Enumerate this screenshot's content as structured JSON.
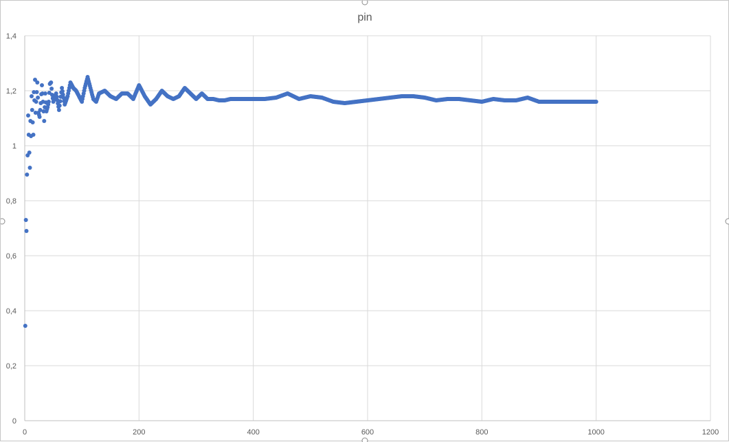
{
  "chart_data": {
    "type": "scatter",
    "title": "pin",
    "xlabel": "",
    "ylabel": "",
    "xlim": [
      0,
      1200
    ],
    "ylim": [
      0,
      1.4
    ],
    "x_ticks": [
      0,
      200,
      400,
      600,
      800,
      1000,
      1200
    ],
    "y_ticks": [
      0,
      0.2,
      0.4,
      0.6,
      0.8,
      1,
      1.2,
      1.4
    ],
    "x_tick_labels": [
      "0",
      "200",
      "400",
      "600",
      "800",
      "1000",
      "1200"
    ],
    "y_tick_labels": [
      "0",
      "0,2",
      "0,4",
      "0,6",
      "0,8",
      "1",
      "1,2",
      "1,4"
    ],
    "grid": true,
    "legend": "none",
    "marker_color": "#4472c4",
    "series": [
      {
        "x": [
          1,
          2,
          3,
          4,
          5,
          6,
          7,
          8,
          9,
          10,
          11,
          12,
          13,
          14,
          15,
          16,
          17,
          18,
          19,
          20,
          22,
          24,
          26,
          28,
          30,
          32,
          34,
          36,
          38,
          40,
          42,
          44,
          46,
          48,
          50,
          55,
          60,
          65,
          70,
          75,
          80,
          85,
          90,
          95,
          100,
          105,
          110,
          115,
          120,
          125,
          130,
          140,
          150,
          160,
          170,
          180,
          190,
          200,
          210,
          220,
          230,
          240,
          250,
          260,
          270,
          280,
          290,
          300,
          310,
          320,
          330,
          340,
          350,
          360,
          380,
          400,
          420,
          440,
          460,
          470,
          480,
          500,
          520,
          540,
          560,
          580,
          600,
          620,
          640,
          660,
          680,
          700,
          720,
          740,
          760,
          780,
          800,
          820,
          840,
          860,
          880,
          900,
          920,
          940,
          960,
          980,
          1000
        ],
        "y": [
          0.345,
          0.73,
          0.69,
          0.895,
          0.965,
          1.11,
          1.04,
          0.975,
          0.92,
          1.09,
          1.035,
          1.18,
          1.13,
          1.085,
          1.04,
          1.195,
          1.165,
          1.24,
          1.12,
          1.16,
          1.23,
          1.12,
          1.105,
          1.155,
          1.22,
          1.16,
          1.09,
          1.19,
          1.125,
          1.14,
          1.16,
          1.225,
          1.23,
          1.185,
          1.16,
          1.19,
          1.13,
          1.21,
          1.15,
          1.18,
          1.23,
          1.21,
          1.2,
          1.18,
          1.16,
          1.21,
          1.25,
          1.21,
          1.17,
          1.16,
          1.19,
          1.2,
          1.18,
          1.17,
          1.19,
          1.19,
          1.17,
          1.22,
          1.18,
          1.15,
          1.17,
          1.2,
          1.18,
          1.17,
          1.18,
          1.21,
          1.19,
          1.17,
          1.19,
          1.17,
          1.17,
          1.165,
          1.165,
          1.17,
          1.17,
          1.17,
          1.17,
          1.175,
          1.19,
          1.18,
          1.17,
          1.18,
          1.175,
          1.16,
          1.155,
          1.16,
          1.165,
          1.17,
          1.175,
          1.18,
          1.18,
          1.175,
          1.165,
          1.17,
          1.17,
          1.165,
          1.16,
          1.17,
          1.165,
          1.165,
          1.175,
          1.16,
          1.16,
          1.16,
          1.16,
          1.16,
          1.16
        ]
      }
    ]
  }
}
